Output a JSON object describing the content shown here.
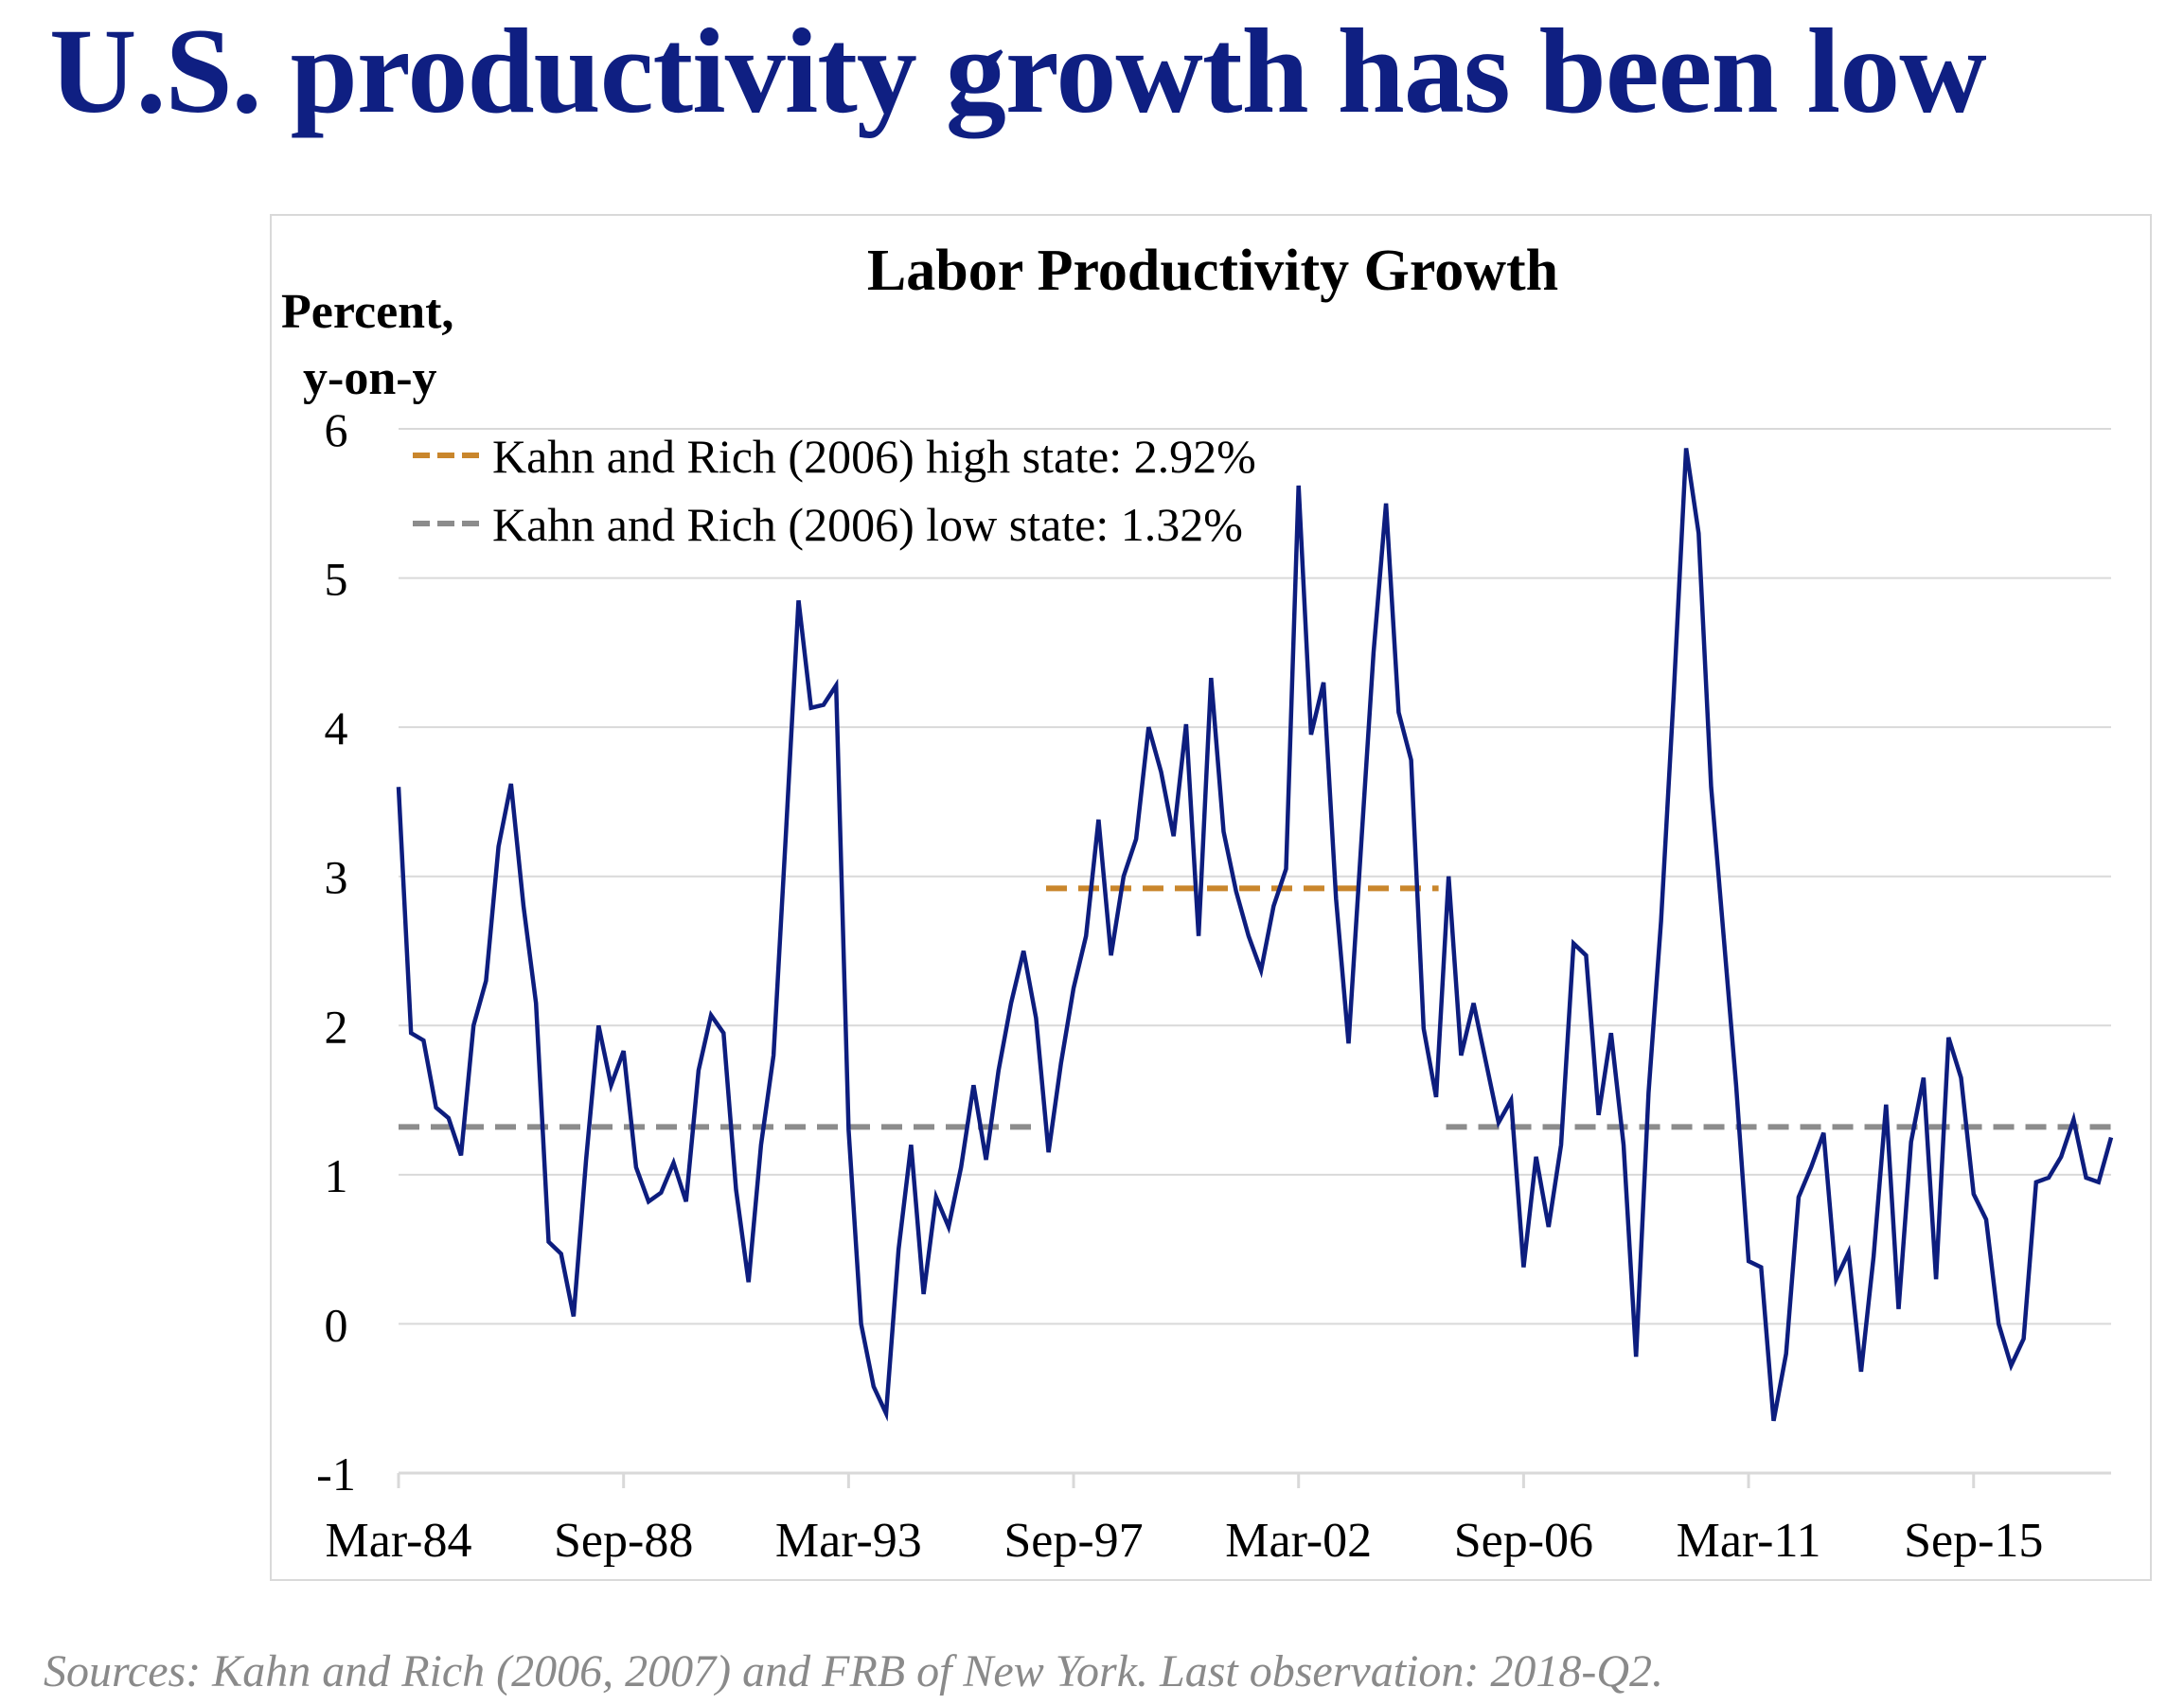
{
  "slide": {
    "title": "U.S. productivity growth has been low",
    "footnote": "Sources: Kahn and Rich (2006, 2007) and FRB of New York. Last observation: 2018-Q2."
  },
  "colors": {
    "title": "#0f1f82",
    "series": "#0d1d7e",
    "high_state": "#c9862c",
    "low_state": "#8c8c8c",
    "grid": "#d9d9d9",
    "footnote": "#8a8a8a"
  },
  "chart_data": {
    "type": "line",
    "title": "Labor Productivity Growth",
    "ylabel": "Percent,\ny-on-y",
    "ylabel_lines": [
      "Percent,",
      "y-on-y"
    ],
    "xlabel": "",
    "ylim": [
      -1,
      6
    ],
    "yticks": [
      -1,
      0,
      1,
      2,
      3,
      4,
      5,
      6
    ],
    "grid": true,
    "legend_position": "top-left",
    "x_start": "1984-Q1",
    "x_end": "2018-Q2",
    "frequency": "quarterly",
    "xtick_labels": [
      {
        "label": "Mar-84",
        "index": 0
      },
      {
        "label": "Sep-88",
        "index": 18
      },
      {
        "label": "Mar-93",
        "index": 36
      },
      {
        "label": "Sep-97",
        "index": 54
      },
      {
        "label": "Mar-02",
        "index": 72
      },
      {
        "label": "Sep-06",
        "index": 90
      },
      {
        "label": "Mar-11",
        "index": 108
      },
      {
        "label": "Sep-15",
        "index": 126
      }
    ],
    "series": [
      {
        "name": "Labor productivity growth",
        "style": "solid",
        "values": [
          3.6,
          1.95,
          1.9,
          1.45,
          1.38,
          1.13,
          2.0,
          2.3,
          3.2,
          3.62,
          2.8,
          2.15,
          0.55,
          0.47,
          0.05,
          1.1,
          2.0,
          1.6,
          1.83,
          1.05,
          0.82,
          0.88,
          1.08,
          0.82,
          1.7,
          2.07,
          1.95,
          0.9,
          0.28,
          1.2,
          1.8,
          3.3,
          4.85,
          4.13,
          4.15,
          4.28,
          1.3,
          0.0,
          -0.42,
          -0.6,
          0.5,
          1.2,
          0.2,
          0.85,
          0.65,
          1.05,
          1.6,
          1.1,
          1.7,
          2.15,
          2.5,
          2.05,
          1.15,
          1.75,
          2.25,
          2.6,
          3.38,
          2.47,
          3.0,
          3.25,
          4.0,
          3.7,
          3.27,
          4.02,
          2.6,
          4.33,
          3.3,
          2.9,
          2.6,
          2.37,
          2.8,
          3.05,
          5.62,
          3.95,
          4.3,
          2.85,
          1.88,
          3.2,
          4.5,
          5.5,
          4.1,
          3.78,
          1.98,
          1.52,
          3.0,
          1.8,
          2.15,
          1.75,
          1.35,
          1.5,
          0.38,
          1.12,
          0.65,
          1.2,
          2.55,
          2.47,
          1.4,
          1.95,
          1.2,
          -0.22,
          1.55,
          2.7,
          4.2,
          5.87,
          5.3,
          3.6,
          2.6,
          1.6,
          0.42,
          0.38,
          -0.65,
          -0.2,
          0.85,
          1.05,
          1.28,
          0.3,
          0.48,
          -0.32,
          0.45,
          1.47,
          0.1,
          1.22,
          1.65,
          0.3,
          1.92,
          1.65,
          0.87,
          0.7,
          0.0,
          -0.28,
          -0.1,
          0.95,
          0.98,
          1.12,
          1.37,
          0.98,
          0.95,
          1.25
        ]
      },
      {
        "name": "Kahn and Rich (2006) high state: 2.92%",
        "style": "dashed",
        "value": 2.92,
        "segments": [
          [
            51.8,
            83.2
          ]
        ]
      },
      {
        "name": "Kahn and Rich (2006) low state: 1.32%",
        "style": "dashed",
        "value": 1.32,
        "segments": [
          [
            0,
            51.5
          ],
          [
            83.8,
            137
          ]
        ]
      }
    ],
    "legend": [
      {
        "label": "Kahn and Rich (2006) high state: 2.92%",
        "color_key": "high_state"
      },
      {
        "label": "Kahn and Rich (2006) low state: 1.32%",
        "color_key": "low_state"
      }
    ]
  }
}
